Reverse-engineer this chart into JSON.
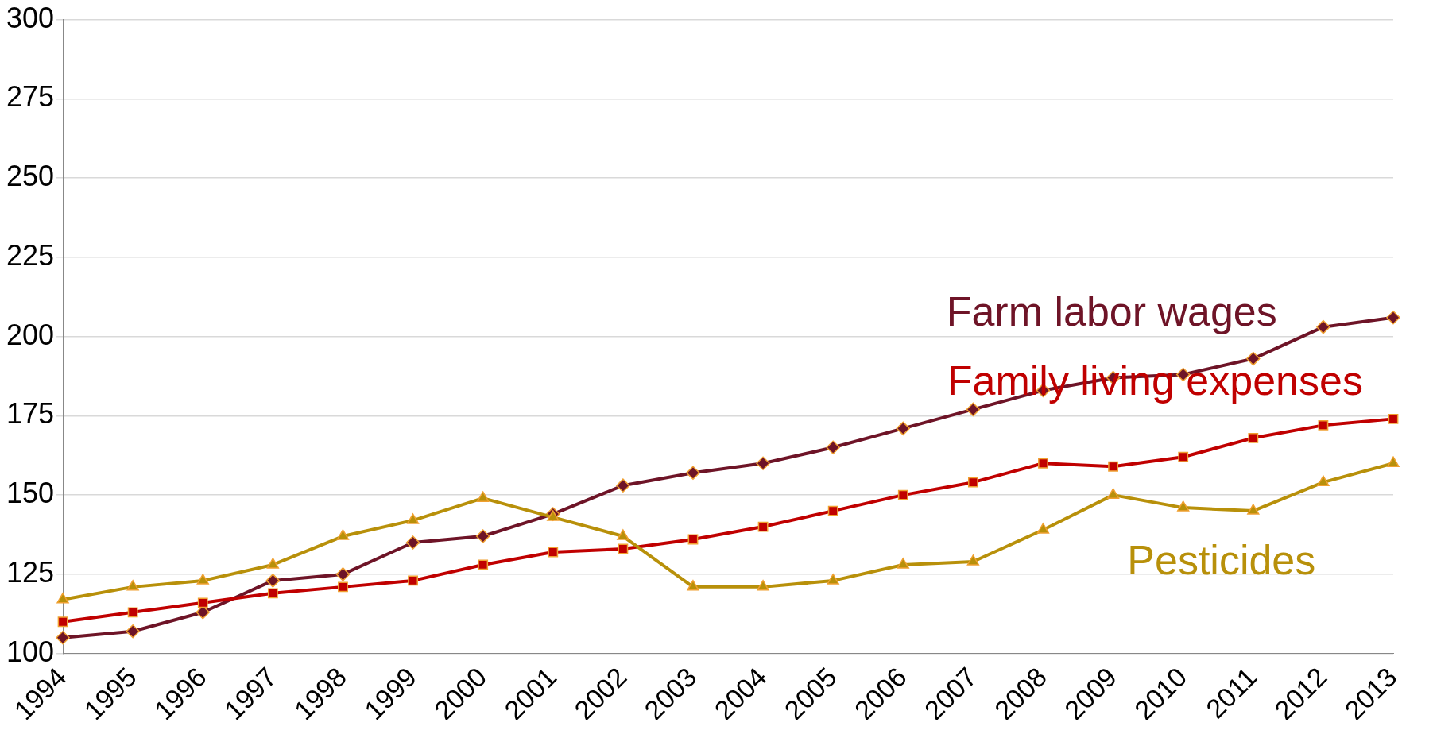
{
  "chart_data": {
    "type": "line",
    "categories": [
      "1994",
      "1995",
      "1996",
      "1997",
      "1998",
      "1999",
      "2000",
      "2001",
      "2002",
      "2003",
      "2004",
      "2005",
      "2006",
      "2007",
      "2008",
      "2009",
      "2010",
      "2011",
      "2012",
      "2013"
    ],
    "series": [
      {
        "name": "Farm labor wages",
        "color": "#6e1427",
        "marker": "diamond",
        "values": [
          105,
          107,
          113,
          123,
          125,
          135,
          137,
          144,
          153,
          157,
          160,
          165,
          171,
          177,
          183,
          187,
          188,
          193,
          203,
          206
        ]
      },
      {
        "name": "Family living expenses",
        "color": "#c00000",
        "marker": "square",
        "values": [
          110,
          113,
          116,
          119,
          121,
          123,
          128,
          132,
          133,
          136,
          140,
          145,
          150,
          154,
          160,
          159,
          162,
          168,
          172,
          174
        ]
      },
      {
        "name": "Pesticides",
        "color": "#b8900a",
        "marker": "triangle",
        "values": [
          117,
          121,
          123,
          128,
          137,
          142,
          149,
          143,
          137,
          121,
          121,
          123,
          128,
          129,
          139,
          150,
          146,
          145,
          154,
          160
        ]
      }
    ],
    "ylim": [
      100,
      300
    ],
    "yticks": [
      100,
      125,
      150,
      175,
      200,
      225,
      250,
      275,
      300
    ],
    "grid": "y",
    "legend": false,
    "line_style": "solid"
  }
}
